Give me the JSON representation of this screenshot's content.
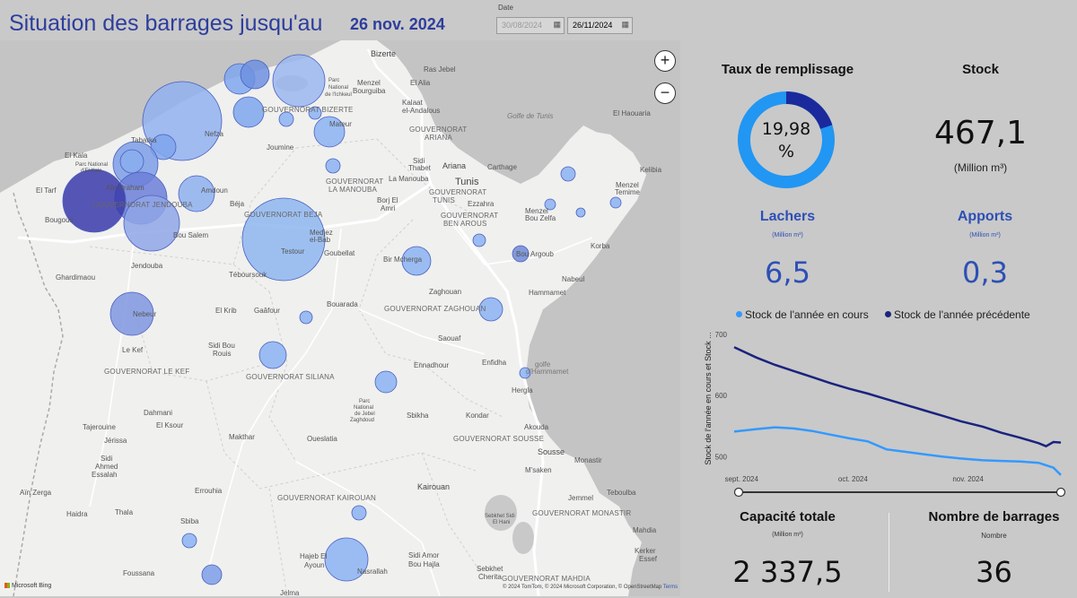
{
  "header": {
    "title": "Situation des barrages jusqu'au",
    "date": "26 nov. 2024",
    "date_filter": {
      "label": "Date",
      "start": "30/08/2024",
      "end": "26/11/2024"
    }
  },
  "map": {
    "zoom_in": "+",
    "zoom_out": "−",
    "provider": "Microsoft Bing",
    "copyright": "© 2024 TomTom, © 2024 Microsoft Corporation, © OpenStreetMap",
    "terms": "Terms",
    "labels": [
      {
        "text": "Bizerte",
        "cls": "city"
      },
      {
        "text": "Ras Jebel",
        "cls": ""
      },
      {
        "text": "Menzel",
        "cls": ""
      },
      {
        "text": "Bourguiba",
        "cls": ""
      },
      {
        "text": "El Alia",
        "cls": ""
      },
      {
        "text": "Parc",
        "cls": ""
      },
      {
        "text": "National",
        "cls": ""
      },
      {
        "text": "de l'Ichkeul",
        "cls": ""
      },
      {
        "text": "Kalaat",
        "cls": ""
      },
      {
        "text": "el-Andalous",
        "cls": ""
      },
      {
        "text": "Golfe de Tunis",
        "cls": ""
      },
      {
        "text": "El Haouaria",
        "cls": ""
      },
      {
        "text": "GOUVERNORAT BIZERTE",
        "cls": "gov"
      },
      {
        "text": "GOUVERNORAT",
        "cls": "gov"
      },
      {
        "text": "ARIANA",
        "cls": "gov"
      },
      {
        "text": "Nefza",
        "cls": ""
      },
      {
        "text": "Joumine",
        "cls": ""
      },
      {
        "text": "Mateur",
        "cls": ""
      },
      {
        "text": "El Kala",
        "cls": ""
      },
      {
        "text": "Parc National",
        "cls": ""
      },
      {
        "text": "d'El Kala",
        "cls": ""
      },
      {
        "text": "Tabarka",
        "cls": ""
      },
      {
        "text": "El Tarf",
        "cls": ""
      },
      {
        "text": "Aïn Draham",
        "cls": ""
      },
      {
        "text": "Bougous",
        "cls": ""
      },
      {
        "text": "GOUVERNORAT JENDOUBA",
        "cls": "gov"
      },
      {
        "text": "Amdoun",
        "cls": ""
      },
      {
        "text": "Béja",
        "cls": ""
      },
      {
        "text": "GOUVERNORAT BEJA",
        "cls": "gov"
      },
      {
        "text": "Sidi",
        "cls": ""
      },
      {
        "text": "Thabet",
        "cls": ""
      },
      {
        "text": "Ariana",
        "cls": "city"
      },
      {
        "text": "Carthage",
        "cls": ""
      },
      {
        "text": "Kelibia",
        "cls": ""
      },
      {
        "text": "GOUVERNORAT",
        "cls": "gov"
      },
      {
        "text": "LA MANOUBA",
        "cls": "gov"
      },
      {
        "text": "La Manouba",
        "cls": ""
      },
      {
        "text": "Tunis",
        "cls": "big"
      },
      {
        "text": "Borj El",
        "cls": ""
      },
      {
        "text": "Amri",
        "cls": ""
      },
      {
        "text": "GOUVERNORAT",
        "cls": "gov"
      },
      {
        "text": "TUNIS",
        "cls": "gov"
      },
      {
        "text": "Ezzahra",
        "cls": ""
      },
      {
        "text": "GOUVERNORAT",
        "cls": "gov"
      },
      {
        "text": "BEN AROUS",
        "cls": "gov"
      },
      {
        "text": "Menzel",
        "cls": ""
      },
      {
        "text": "Bou Zelfa",
        "cls": ""
      },
      {
        "text": "Menzel",
        "cls": ""
      },
      {
        "text": "Temime",
        "cls": ""
      },
      {
        "text": "Bou Salem",
        "cls": ""
      },
      {
        "text": "Medjez",
        "cls": ""
      },
      {
        "text": "el-Bab",
        "cls": ""
      },
      {
        "text": "Testour",
        "cls": ""
      },
      {
        "text": "Goubellat",
        "cls": ""
      },
      {
        "text": "Bir Mcherga",
        "cls": ""
      },
      {
        "text": "Bou Argoub",
        "cls": ""
      },
      {
        "text": "Korba",
        "cls": ""
      },
      {
        "text": "Jendouba",
        "cls": ""
      },
      {
        "text": "Téboursouk",
        "cls": ""
      },
      {
        "text": "Ghardimaou",
        "cls": ""
      },
      {
        "text": "Nabeul",
        "cls": ""
      },
      {
        "text": "Hammamet",
        "cls": ""
      },
      {
        "text": "Zaghouan",
        "cls": ""
      },
      {
        "text": "Bouarada",
        "cls": ""
      },
      {
        "text": "GOUVERNORAT ZAGHOUAN",
        "cls": "gov"
      },
      {
        "text": "El Krib",
        "cls": ""
      },
      {
        "text": "Gaâfour",
        "cls": ""
      },
      {
        "text": "Nebeur",
        "cls": ""
      },
      {
        "text": "Saouaf",
        "cls": ""
      },
      {
        "text": "Le Kef",
        "cls": ""
      },
      {
        "text": "Sidi Bou",
        "cls": ""
      },
      {
        "text": "Rouis",
        "cls": ""
      },
      {
        "text": "GOUVERNORAT LE KEF",
        "cls": "gov"
      },
      {
        "text": "GOUVERNORAT SILIANA",
        "cls": "gov"
      },
      {
        "text": "Ennadhour",
        "cls": ""
      },
      {
        "text": "Enfidha",
        "cls": ""
      },
      {
        "text": "golfe",
        "cls": ""
      },
      {
        "text": "d'Hammamet",
        "cls": ""
      },
      {
        "text": "Hergla",
        "cls": ""
      },
      {
        "text": "Parc",
        "cls": ""
      },
      {
        "text": "National",
        "cls": ""
      },
      {
        "text": "de Jebel",
        "cls": ""
      },
      {
        "text": "Zaghdoud",
        "cls": ""
      },
      {
        "text": "Dahmani",
        "cls": ""
      },
      {
        "text": "El Ksour",
        "cls": ""
      },
      {
        "text": "Sbikha",
        "cls": ""
      },
      {
        "text": "Kondar",
        "cls": ""
      },
      {
        "text": "Akouda",
        "cls": ""
      },
      {
        "text": "Tajerouine",
        "cls": ""
      },
      {
        "text": "Jérissa",
        "cls": ""
      },
      {
        "text": "Makthar",
        "cls": ""
      },
      {
        "text": "Oueslatia",
        "cls": ""
      },
      {
        "text": "GOUVERNORAT SOUSSE",
        "cls": "gov"
      },
      {
        "text": "Sousse",
        "cls": "city"
      },
      {
        "text": "Monastir",
        "cls": ""
      },
      {
        "text": "Sidi",
        "cls": ""
      },
      {
        "text": "Ahmed",
        "cls": ""
      },
      {
        "text": "Essalah",
        "cls": ""
      },
      {
        "text": "M'saken",
        "cls": ""
      },
      {
        "text": "Aïn Zerga",
        "cls": ""
      },
      {
        "text": "Errouhia",
        "cls": ""
      },
      {
        "text": "Kairouan",
        "cls": "city"
      },
      {
        "text": "Jemmel",
        "cls": ""
      },
      {
        "text": "Teboulba",
        "cls": ""
      },
      {
        "text": "Haidra",
        "cls": ""
      },
      {
        "text": "Thala",
        "cls": ""
      },
      {
        "text": "GOUVERNORAT KAIROUAN",
        "cls": "gov"
      },
      {
        "text": "Sebkhet Sidi",
        "cls": ""
      },
      {
        "text": "El Hani",
        "cls": ""
      },
      {
        "text": "GOUVERNORAT MONASTIR",
        "cls": "gov"
      },
      {
        "text": "Sbiba",
        "cls": ""
      },
      {
        "text": "Mahdia",
        "cls": ""
      },
      {
        "text": "Foussana",
        "cls": ""
      },
      {
        "text": "Hajeb El",
        "cls": ""
      },
      {
        "text": "Ayoun",
        "cls": ""
      },
      {
        "text": "Nasrallah",
        "cls": ""
      },
      {
        "text": "Sidi Amor",
        "cls": ""
      },
      {
        "text": "Bou Hajla",
        "cls": ""
      },
      {
        "text": "Sebkhet",
        "cls": ""
      },
      {
        "text": "Cherita",
        "cls": ""
      },
      {
        "text": "GOUVERNORAT MAHDIA",
        "cls": "gov"
      },
      {
        "text": "Kerker",
        "cls": ""
      },
      {
        "text": "Essef",
        "cls": ""
      },
      {
        "text": "Jelma",
        "cls": ""
      }
    ]
  },
  "kpis": {
    "taux": {
      "label": "Taux de remplissage",
      "value": "19,98",
      "unit": "%",
      "fraction": 0.1998
    },
    "stock": {
      "label": "Stock",
      "value": "467,1",
      "unit": "(Million m³)"
    },
    "lachers": {
      "label": "Lachers",
      "unit": "(Million m³)",
      "value": "6,5"
    },
    "apports": {
      "label": "Apports",
      "unit": "(Million m³)",
      "value": "0,3"
    },
    "capacite": {
      "label": "Capacité totale",
      "unit": "(Million m³)",
      "value": "2 337,5"
    },
    "barrages": {
      "label": "Nombre de barrages",
      "unit": "Nombre",
      "value": "36"
    }
  },
  "colors": {
    "current": "#3399ff",
    "previous": "#1a237e",
    "donut_empty": "#2196f3",
    "donut_fill": "#1a2a9c",
    "title_blue": "#2e3e9c"
  },
  "chart_data": {
    "type": "line",
    "legend": [
      "Stock de l'année en cours",
      "Stock de l'année précédente"
    ],
    "ylabel": "Stock de l'année en cours et Stock ...",
    "y_ticks": [
      500,
      600,
      700
    ],
    "ylim": [
      480,
      710
    ],
    "x_ticks": [
      "sept. 2024",
      "oct. 2024",
      "nov. 2024"
    ],
    "x": [
      "2024-08-30",
      "2024-09-05",
      "2024-09-10",
      "2024-09-15",
      "2024-09-20",
      "2024-09-25",
      "2024-09-30",
      "2024-10-05",
      "2024-10-10",
      "2024-10-15",
      "2024-10-20",
      "2024-10-25",
      "2024-10-30",
      "2024-11-05",
      "2024-11-10",
      "2024-11-15",
      "2024-11-20",
      "2024-11-22",
      "2024-11-24",
      "2024-11-26"
    ],
    "series": [
      {
        "name": "Stock de l'année en cours",
        "color": "#3399ff",
        "values": [
          541,
          545,
          548,
          546,
          542,
          536,
          530,
          525,
          512,
          508,
          504,
          500,
          497,
          494,
          493,
          492,
          490,
          486,
          482,
          470
        ]
      },
      {
        "name": "Stock de l'année précédente",
        "color": "#1a237e",
        "values": [
          679,
          662,
          650,
          640,
          630,
          620,
          611,
          603,
          594,
          585,
          576,
          567,
          558,
          549,
          539,
          531,
          522,
          517,
          524,
          523
        ]
      }
    ]
  }
}
